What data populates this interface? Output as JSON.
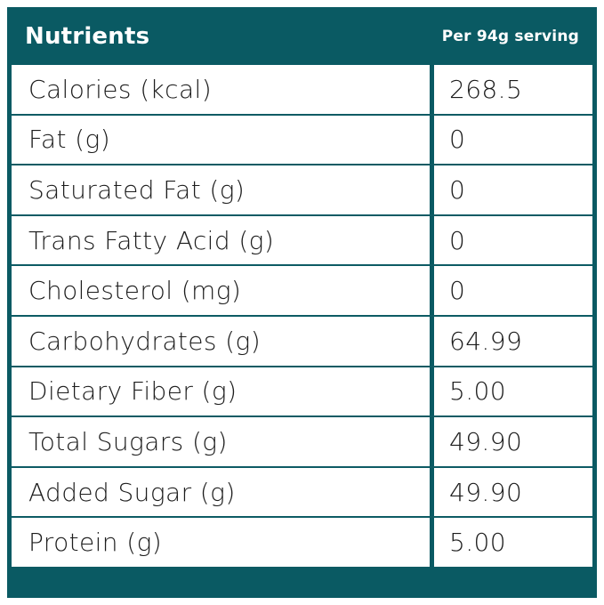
{
  "header": {
    "title": "Nutrients",
    "serving_label": "Per 94g serving"
  },
  "colors": {
    "accent_teal": "#0a5a63",
    "text": "#1d1d1d",
    "background": "#ffffff"
  },
  "table": {
    "columns": [
      "Nutrients",
      "Per 94g serving"
    ],
    "rows": [
      {
        "label": "Calories (kcal)",
        "value": "268.5"
      },
      {
        "label": "Fat (g)",
        "value": "0"
      },
      {
        "label": "Saturated Fat (g)",
        "value": "0"
      },
      {
        "label": "Trans Fatty Acid (g)",
        "value": "0"
      },
      {
        "label": "Cholesterol (mg)",
        "value": "0"
      },
      {
        "label": "Carbohydrates (g)",
        "value": "64.99"
      },
      {
        "label": "Dietary Fiber (g)",
        "value": "5.00"
      },
      {
        "label": "Total Sugars (g)",
        "value": "49.90"
      },
      {
        "label": "Added Sugar (g)",
        "value": "49.90"
      },
      {
        "label": "Protein (g)",
        "value": "5.00"
      }
    ]
  }
}
